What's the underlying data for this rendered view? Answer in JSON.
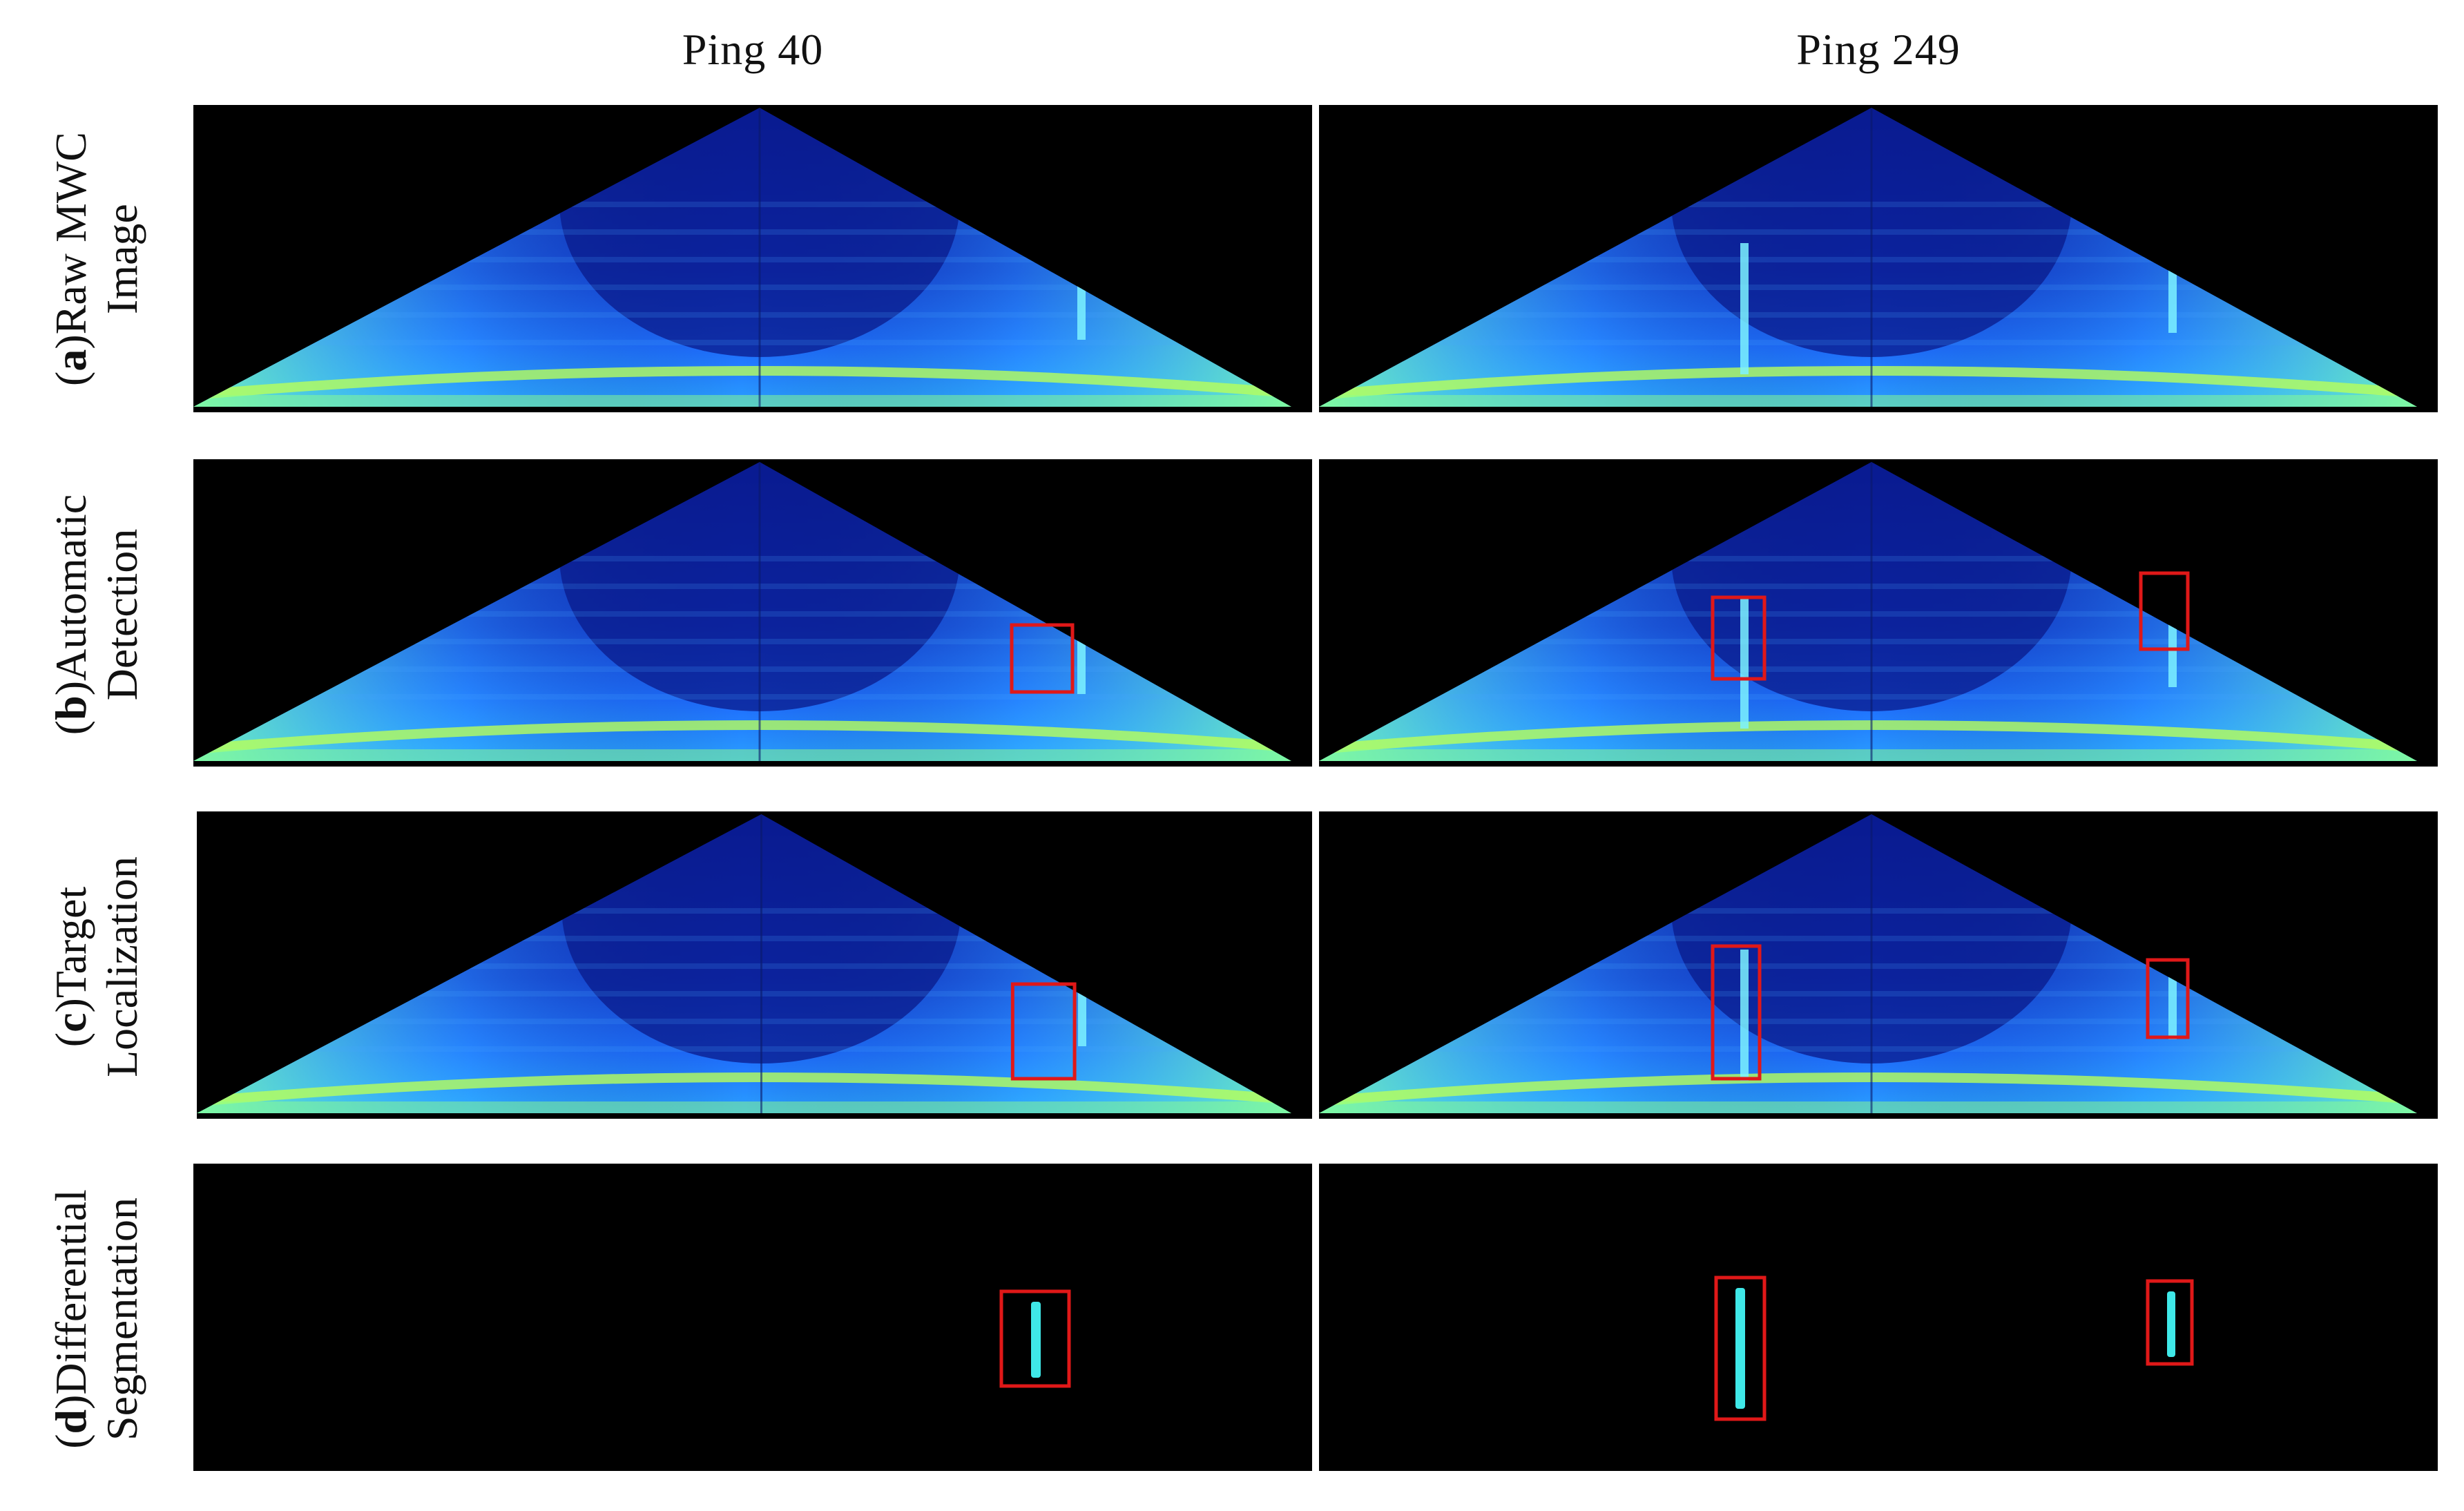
{
  "columns": [
    {
      "title": "Ping 40"
    },
    {
      "title": "Ping 249"
    }
  ],
  "rows": [
    {
      "letter": "a",
      "line1": "Raw MWC",
      "line2": "Image"
    },
    {
      "letter": "b",
      "line1": "Automatic",
      "line2": "Detection"
    },
    {
      "letter": "c",
      "line1": "Target",
      "line2": "Localization"
    },
    {
      "letter": "d",
      "line1": "Differential",
      "line2": "Segmentation"
    }
  ],
  "colors": {
    "background": "#000000",
    "water_column_low": "#0a1fa8",
    "water_column_mid": "#1e6cff",
    "water_column_high": "#7cf2ff",
    "seabed": "#b8ff5a",
    "box": "#e01818",
    "segment": "#3fe8e8"
  }
}
